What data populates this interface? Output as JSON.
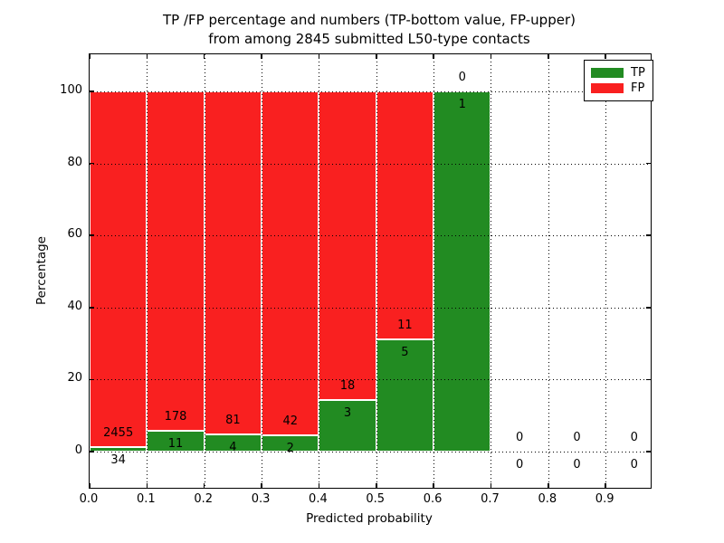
{
  "chart_data": {
    "type": "bar",
    "stacked": true,
    "normalization": "percent-of-bin-total",
    "title": "TP /FP percentage and numbers (TP-bottom value, FP-upper)\nfrom among 2845 submitted L50-type contacts",
    "xlabel": "Predicted probability",
    "ylabel": "Percentage",
    "total_submitted_contacts": 2845,
    "xlim": [
      0,
      0.98
    ],
    "ylim": [
      -10.3,
      110.3
    ],
    "grid": "dotted",
    "x_tick_labels": [
      "0.0",
      "0.1",
      "0.2",
      "0.3",
      "0.4",
      "0.5",
      "0.6",
      "0.7",
      "0.8",
      "0.9"
    ],
    "y_tick_labels": [
      "0",
      "20",
      "40",
      "60",
      "80",
      "100"
    ],
    "y_tick_values": [
      0,
      20,
      40,
      60,
      80,
      100
    ],
    "legend": {
      "position": "upper right",
      "entries": [
        {
          "label": "TP",
          "color": "#228b22"
        },
        {
          "label": "FP",
          "color": "#f92020"
        }
      ]
    },
    "colors": {
      "tp": "#228b22",
      "fp": "#f92020",
      "bar_edge": "#ffffff"
    },
    "bins": [
      {
        "x_start": 0.0,
        "x_end": 0.1,
        "tp": 34,
        "fp": 2455
      },
      {
        "x_start": 0.1,
        "x_end": 0.2,
        "tp": 11,
        "fp": 178
      },
      {
        "x_start": 0.2,
        "x_end": 0.3,
        "tp": 4,
        "fp": 81
      },
      {
        "x_start": 0.3,
        "x_end": 0.4,
        "tp": 2,
        "fp": 42
      },
      {
        "x_start": 0.4,
        "x_end": 0.5,
        "tp": 3,
        "fp": 18
      },
      {
        "x_start": 0.5,
        "x_end": 0.6,
        "tp": 5,
        "fp": 11
      },
      {
        "x_start": 0.6,
        "x_end": 0.7,
        "tp": 1,
        "fp": 0
      },
      {
        "x_start": 0.7,
        "x_end": 0.8,
        "tp": 0,
        "fp": 0
      },
      {
        "x_start": 0.8,
        "x_end": 0.9,
        "tp": 0,
        "fp": 0
      },
      {
        "x_start": 0.9,
        "x_end": 1.0,
        "tp": 0,
        "fp": 0
      }
    ]
  }
}
